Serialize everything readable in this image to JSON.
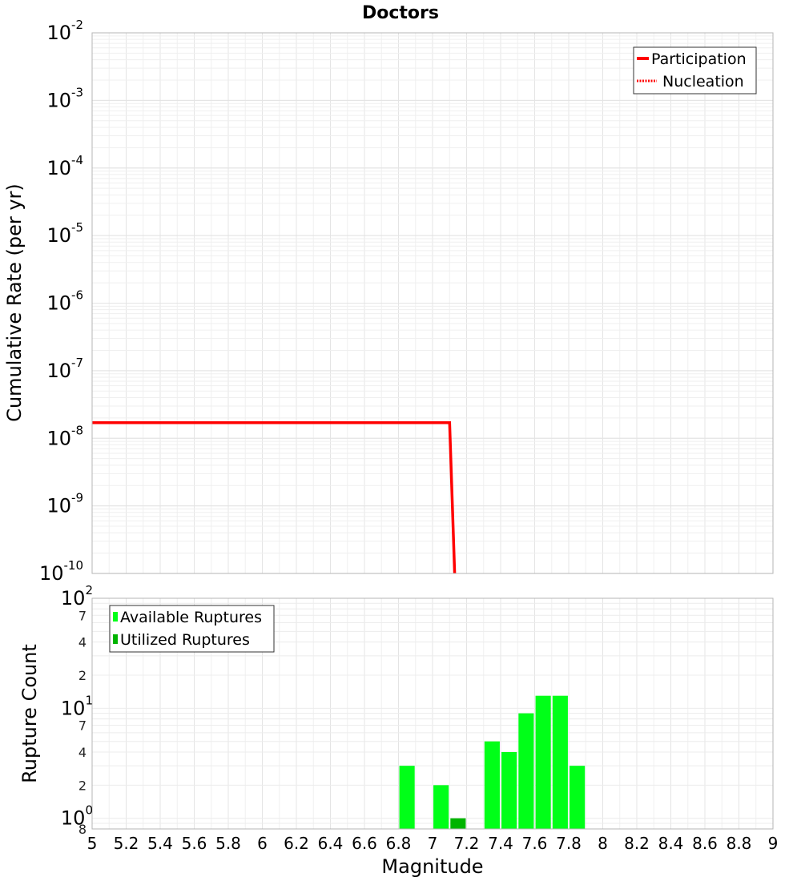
{
  "chart_data": [
    {
      "type": "line",
      "title": "Doctors",
      "xlabel": "",
      "ylabel": "Cumulative Rate (per yr)",
      "yscale": "log",
      "xlim": [
        5,
        9
      ],
      "ylim": [
        1e-10,
        0.01
      ],
      "y_ticks": [
        {
          "base": "10",
          "exp": "-2",
          "value": -2
        },
        {
          "base": "10",
          "exp": "-3",
          "value": -3
        },
        {
          "base": "10",
          "exp": "-4",
          "value": -4
        },
        {
          "base": "10",
          "exp": "-5",
          "value": -5
        },
        {
          "base": "10",
          "exp": "-6",
          "value": -6
        },
        {
          "base": "10",
          "exp": "-7",
          "value": -7
        },
        {
          "base": "10",
          "exp": "-8",
          "value": -8
        },
        {
          "base": "10",
          "exp": "-9",
          "value": -9
        },
        {
          "base": "10",
          "exp": "-10",
          "value": -10
        }
      ],
      "grid": true,
      "legend_position": "top-right",
      "series": [
        {
          "name": "Participation",
          "style": "solid",
          "color": "#ff0000",
          "x": [
            5.0,
            7.1,
            7.13
          ],
          "y": [
            1.7e-08,
            1.7e-08,
            1e-10
          ]
        },
        {
          "name": "Nucleation",
          "style": "dotted",
          "color": "#ff0000",
          "x": [
            5.0,
            7.1,
            7.13
          ],
          "y": [
            1.7e-08,
            1.7e-08,
            1e-10
          ]
        }
      ]
    },
    {
      "type": "bar",
      "title": "",
      "xlabel": "Magnitude",
      "ylabel": "Rupture Count",
      "yscale": "log",
      "xlim": [
        5,
        9
      ],
      "ylim": [
        0.8,
        100
      ],
      "x_ticks": [
        "5",
        "5.2",
        "5.4",
        "5.6",
        "5.8",
        "6",
        "6.2",
        "6.4",
        "6.6",
        "6.8",
        "7",
        "7.2",
        "7.4",
        "7.6",
        "7.8",
        "8",
        "8.2",
        "8.4",
        "8.6",
        "8.8",
        "9"
      ],
      "y_major_ticks": [
        {
          "base": "10",
          "exp": "2",
          "value": 100
        },
        {
          "base": "10",
          "exp": "1",
          "value": 10
        },
        {
          "base": "10",
          "exp": "0",
          "value": 1
        }
      ],
      "y_minor_labels": [
        {
          "label": "7",
          "value": 70
        },
        {
          "label": "4",
          "value": 40
        },
        {
          "label": "2",
          "value": 20
        },
        {
          "label": "7",
          "value": 7
        },
        {
          "label": "4",
          "value": 4
        },
        {
          "label": "2",
          "value": 2
        },
        {
          "label": "8",
          "value": 0.8
        }
      ],
      "grid": true,
      "legend_position": "top-left",
      "series": [
        {
          "name": "Available Ruptures",
          "color": "#00ff18",
          "x": [
            6.85,
            7.05,
            7.35,
            7.45,
            7.55,
            7.65,
            7.75,
            7.85
          ],
          "values": [
            3,
            2,
            5,
            4,
            9,
            13,
            13,
            3
          ]
        },
        {
          "name": "Utilized Ruptures",
          "color": "#00b400",
          "x": [
            7.15
          ],
          "values": [
            1
          ]
        }
      ]
    }
  ]
}
